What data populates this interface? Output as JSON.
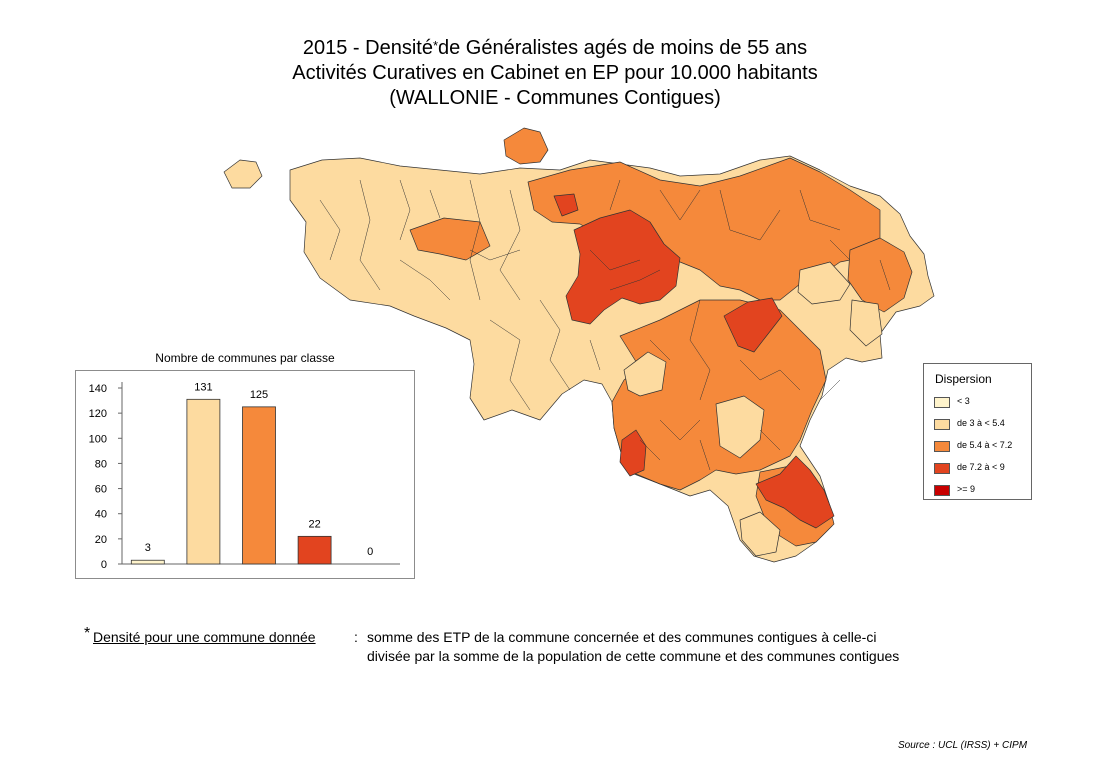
{
  "title": {
    "line1_a": "2015 - Densité",
    "line1_star": "*",
    "line1_b": "de Généralistes agés de moins de 55 ans",
    "line2": "Activités Curatives en Cabinet en EP pour 10.000 habitants",
    "line3": "(WALLONIE - Communes Contigues)"
  },
  "colors": {
    "class_lt3": "#fff4cc",
    "class_3_54": "#fddba0",
    "class_54_72": "#f5893b",
    "class_72_9": "#e2441f",
    "class_ge9": "#c80000",
    "border": "#333333"
  },
  "legend": {
    "title": "Dispersion",
    "items": [
      {
        "label": "< 3",
        "color": "#fff4cc"
      },
      {
        "label": "de 3 à < 5.4",
        "color": "#fddba0"
      },
      {
        "label": "de 5.4 à < 7.2",
        "color": "#f5893b"
      },
      {
        "label": "de 7.2 à < 9",
        "color": "#e2441f"
      },
      {
        "label": ">= 9",
        "color": "#c80000"
      }
    ]
  },
  "chart_data": {
    "type": "bar",
    "title": "Nombre de communes par classe",
    "categories": [
      "< 3",
      "de 3 à < 5.4",
      "de 5.4 à < 7.2",
      "de 7.2 à < 9",
      ">= 9"
    ],
    "values": [
      3,
      131,
      125,
      22,
      0
    ],
    "colors": [
      "#fff4cc",
      "#fddba0",
      "#f5893b",
      "#e2441f",
      "#c80000"
    ],
    "ylim": [
      0,
      140
    ],
    "yticks": [
      0,
      20,
      40,
      60,
      80,
      100,
      120,
      140
    ],
    "data_labels": true,
    "grid": false
  },
  "footnote": {
    "star": "*",
    "term": "Densité pour une commune donnée",
    "colon": ":",
    "line1": "somme des ETP de la commune concernée et des communes contigues à celle-ci",
    "line2": "divisée par la somme de la population de cette commune et des communes contigues"
  },
  "source": "Source : UCL (IRSS) + CIPM"
}
